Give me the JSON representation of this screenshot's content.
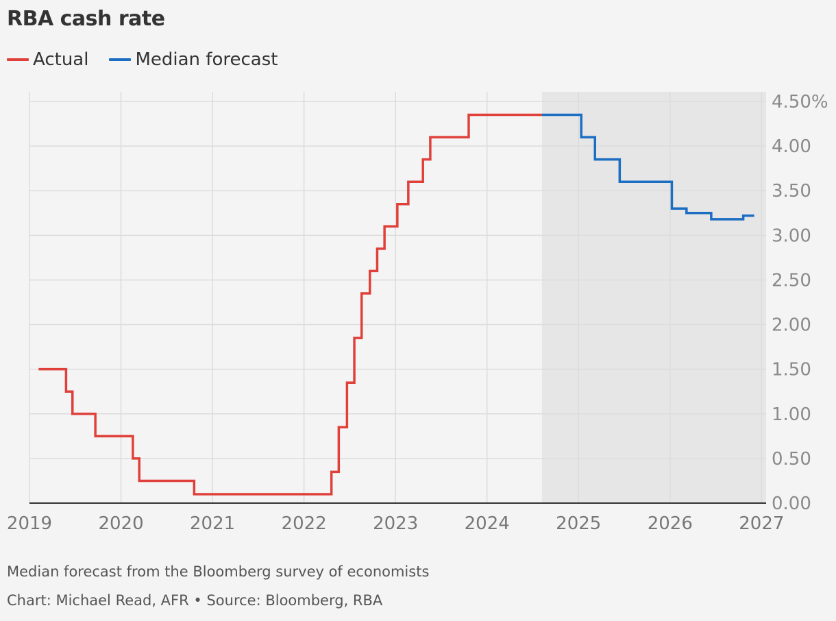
{
  "title": "RBA cash rate",
  "legend": {
    "items": [
      {
        "label": "Actual",
        "color": "#e0403a"
      },
      {
        "label": "Median forecast",
        "color": "#1b6ec2"
      }
    ]
  },
  "footer": {
    "note": "Median forecast from the Bloomberg survey of economists",
    "source": "Chart: Michael Read, AFR • Source: Bloomberg, RBA"
  },
  "chart_data": {
    "type": "line",
    "step": true,
    "x_axis": {
      "ticks": [
        2019,
        2020,
        2021,
        2022,
        2023,
        2024,
        2025,
        2026,
        2027
      ],
      "range": [
        2019,
        2027.05
      ]
    },
    "y_axis": {
      "ticks": [
        "0.00",
        "0.50",
        "1.00",
        "1.50",
        "2.00",
        "2.50",
        "3.00",
        "3.50",
        "4.00",
        "4.50%"
      ],
      "range": [
        0,
        4.5
      ],
      "position": "right"
    },
    "grid": true,
    "forecast_shading": {
      "from": 2024.6,
      "to": 2027.05,
      "color": "#e6e6e6"
    },
    "series": [
      {
        "name": "Actual",
        "color": "#e0403a",
        "points": [
          [
            2019.1,
            1.5
          ],
          [
            2019.4,
            1.25
          ],
          [
            2019.47,
            1.0
          ],
          [
            2019.72,
            0.75
          ],
          [
            2020.13,
            0.5
          ],
          [
            2020.2,
            0.25
          ],
          [
            2020.8,
            0.1
          ],
          [
            2022.3,
            0.35
          ],
          [
            2022.38,
            0.85
          ],
          [
            2022.47,
            1.35
          ],
          [
            2022.55,
            1.85
          ],
          [
            2022.63,
            2.35
          ],
          [
            2022.72,
            2.6
          ],
          [
            2022.8,
            2.85
          ],
          [
            2022.88,
            3.1
          ],
          [
            2023.02,
            3.35
          ],
          [
            2023.14,
            3.6
          ],
          [
            2023.3,
            3.85
          ],
          [
            2023.38,
            4.1
          ],
          [
            2023.8,
            4.35
          ],
          [
            2024.6,
            4.35
          ]
        ]
      },
      {
        "name": "Median forecast",
        "color": "#1b6ec2",
        "points": [
          [
            2024.6,
            4.35
          ],
          [
            2025.03,
            4.1
          ],
          [
            2025.18,
            3.85
          ],
          [
            2025.45,
            3.6
          ],
          [
            2026.02,
            3.3
          ],
          [
            2026.18,
            3.25
          ],
          [
            2026.45,
            3.18
          ],
          [
            2026.8,
            3.22
          ],
          [
            2026.92,
            3.22
          ]
        ]
      }
    ]
  }
}
